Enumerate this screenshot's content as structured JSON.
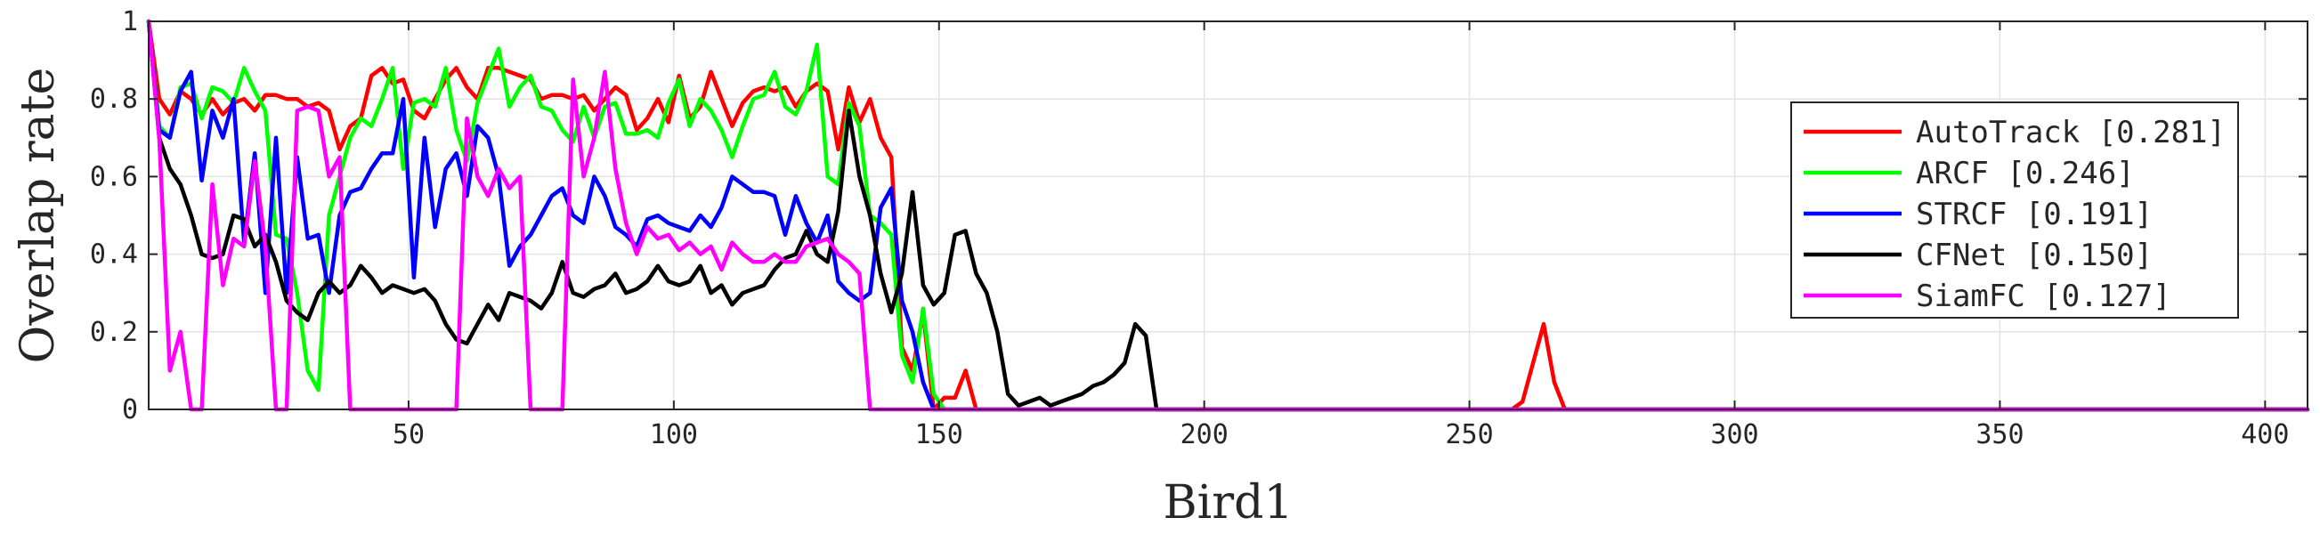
{
  "chart_data": {
    "type": "line",
    "title": "",
    "xlabel": "Bird1",
    "ylabel": "Overlap rate",
    "xlim": [
      1,
      408
    ],
    "ylim": [
      0,
      1
    ],
    "grid": true,
    "legend_position": "top-right",
    "xticks": [
      50,
      100,
      150,
      200,
      250,
      300,
      350,
      400
    ],
    "yticks": [
      0,
      0.2,
      0.4,
      0.6,
      0.8,
      1
    ],
    "ytick_labels": [
      "0",
      "0.2",
      "0.4",
      "0.6",
      "0.8",
      "1"
    ],
    "series": [
      {
        "name": "AutoTrack [0.281]",
        "color": "#ff0000",
        "x": [
          1,
          3,
          5,
          7,
          9,
          11,
          13,
          15,
          17,
          19,
          21,
          23,
          25,
          27,
          29,
          31,
          33,
          35,
          37,
          39,
          41,
          43,
          45,
          47,
          49,
          51,
          53,
          55,
          57,
          59,
          61,
          63,
          65,
          67,
          69,
          71,
          73,
          75,
          77,
          79,
          81,
          83,
          85,
          87,
          89,
          91,
          93,
          95,
          97,
          99,
          101,
          103,
          105,
          107,
          109,
          111,
          113,
          115,
          117,
          119,
          121,
          123,
          125,
          127,
          129,
          131,
          133,
          135,
          137,
          139,
          141,
          143,
          145,
          147,
          149,
          151,
          153,
          155,
          157,
          160,
          200,
          250,
          258,
          260,
          262,
          264,
          266,
          268,
          270,
          300,
          350,
          400,
          408
        ],
        "values": [
          1,
          0.8,
          0.76,
          0.82,
          0.8,
          0.76,
          0.8,
          0.76,
          0.79,
          0.8,
          0.77,
          0.81,
          0.81,
          0.8,
          0.8,
          0.78,
          0.79,
          0.77,
          0.67,
          0.73,
          0.75,
          0.86,
          0.88,
          0.84,
          0.85,
          0.77,
          0.75,
          0.8,
          0.85,
          0.88,
          0.83,
          0.8,
          0.88,
          0.88,
          0.87,
          0.86,
          0.85,
          0.8,
          0.81,
          0.81,
          0.8,
          0.81,
          0.77,
          0.8,
          0.83,
          0.81,
          0.72,
          0.75,
          0.8,
          0.74,
          0.86,
          0.75,
          0.78,
          0.87,
          0.8,
          0.73,
          0.79,
          0.82,
          0.83,
          0.82,
          0.83,
          0.78,
          0.82,
          0.84,
          0.82,
          0.67,
          0.83,
          0.74,
          0.8,
          0.7,
          0.65,
          0.16,
          0.1,
          0.25,
          0,
          0.03,
          0.03,
          0.1,
          0,
          0,
          0,
          0,
          0,
          0.02,
          0.12,
          0.22,
          0.07,
          0,
          0,
          0,
          0,
          0,
          0
        ]
      },
      {
        "name": "ARCF [0.246]",
        "color": "#00ff00",
        "x": [
          1,
          3,
          5,
          7,
          9,
          11,
          13,
          15,
          17,
          19,
          21,
          23,
          25,
          27,
          29,
          31,
          33,
          35,
          37,
          39,
          41,
          43,
          45,
          47,
          49,
          51,
          53,
          55,
          57,
          59,
          61,
          63,
          65,
          67,
          69,
          71,
          73,
          75,
          77,
          79,
          81,
          83,
          85,
          87,
          89,
          91,
          93,
          95,
          97,
          99,
          101,
          103,
          105,
          107,
          109,
          111,
          113,
          115,
          117,
          119,
          121,
          123,
          125,
          127,
          129,
          131,
          133,
          135,
          137,
          139,
          141,
          143,
          145,
          147,
          149,
          151,
          160,
          200,
          250,
          300,
          350,
          400,
          408
        ],
        "values": [
          1,
          0.73,
          0.7,
          0.83,
          0.84,
          0.75,
          0.83,
          0.82,
          0.79,
          0.88,
          0.82,
          0.77,
          0.45,
          0.44,
          0.3,
          0.1,
          0.05,
          0.5,
          0.6,
          0.7,
          0.75,
          0.73,
          0.8,
          0.88,
          0.62,
          0.79,
          0.8,
          0.78,
          0.88,
          0.72,
          0.64,
          0.79,
          0.86,
          0.93,
          0.78,
          0.83,
          0.86,
          0.78,
          0.77,
          0.72,
          0.69,
          0.78,
          0.7,
          0.78,
          0.79,
          0.71,
          0.71,
          0.72,
          0.7,
          0.79,
          0.85,
          0.73,
          0.8,
          0.77,
          0.72,
          0.65,
          0.73,
          0.8,
          0.81,
          0.87,
          0.78,
          0.76,
          0.82,
          0.94,
          0.6,
          0.58,
          0.79,
          0.73,
          0.5,
          0.48,
          0.45,
          0.14,
          0.07,
          0.26,
          0.04,
          0,
          0,
          0,
          0,
          0,
          0,
          0,
          0
        ]
      },
      {
        "name": "STRCF [0.191]",
        "color": "#0000ff",
        "x": [
          1,
          3,
          5,
          7,
          9,
          11,
          13,
          15,
          17,
          19,
          21,
          23,
          25,
          27,
          29,
          31,
          33,
          35,
          37,
          39,
          41,
          43,
          45,
          47,
          49,
          51,
          53,
          55,
          57,
          59,
          61,
          63,
          65,
          67,
          69,
          71,
          73,
          75,
          77,
          79,
          81,
          83,
          85,
          87,
          89,
          91,
          93,
          95,
          97,
          99,
          101,
          103,
          105,
          107,
          109,
          111,
          113,
          115,
          117,
          119,
          121,
          123,
          125,
          127,
          129,
          131,
          133,
          135,
          137,
          139,
          141,
          143,
          145,
          147,
          149,
          151,
          160,
          200,
          250,
          300,
          350,
          400,
          408
        ],
        "values": [
          1,
          0.72,
          0.7,
          0.82,
          0.87,
          0.59,
          0.77,
          0.7,
          0.8,
          0.43,
          0.66,
          0.3,
          0.7,
          0.3,
          0.65,
          0.44,
          0.45,
          0.3,
          0.5,
          0.56,
          0.57,
          0.62,
          0.66,
          0.66,
          0.8,
          0.34,
          0.7,
          0.47,
          0.62,
          0.66,
          0.55,
          0.73,
          0.7,
          0.6,
          0.37,
          0.42,
          0.45,
          0.5,
          0.55,
          0.57,
          0.5,
          0.48,
          0.6,
          0.55,
          0.47,
          0.45,
          0.42,
          0.49,
          0.5,
          0.48,
          0.47,
          0.46,
          0.5,
          0.47,
          0.52,
          0.6,
          0.58,
          0.56,
          0.56,
          0.55,
          0.45,
          0.55,
          0.48,
          0.43,
          0.5,
          0.33,
          0.3,
          0.28,
          0.3,
          0.52,
          0.57,
          0.28,
          0.2,
          0.07,
          0,
          0,
          0,
          0,
          0,
          0,
          0,
          0,
          0
        ]
      },
      {
        "name": "CFNet [0.150]",
        "color": "#000000",
        "x": [
          1,
          3,
          5,
          7,
          9,
          11,
          13,
          15,
          17,
          19,
          21,
          23,
          25,
          27,
          29,
          31,
          33,
          35,
          37,
          39,
          41,
          43,
          45,
          47,
          49,
          51,
          53,
          55,
          57,
          59,
          61,
          63,
          65,
          67,
          69,
          71,
          73,
          75,
          77,
          79,
          81,
          83,
          85,
          87,
          89,
          91,
          93,
          95,
          97,
          99,
          101,
          103,
          105,
          107,
          109,
          111,
          113,
          115,
          117,
          119,
          121,
          123,
          125,
          127,
          129,
          131,
          133,
          135,
          137,
          139,
          141,
          143,
          145,
          147,
          149,
          151,
          153,
          155,
          157,
          159,
          161,
          163,
          165,
          167,
          169,
          171,
          173,
          175,
          177,
          179,
          181,
          183,
          185,
          187,
          189,
          191,
          193,
          195,
          200,
          250,
          300,
          350,
          400,
          408
        ],
        "values": [
          1,
          0.7,
          0.62,
          0.58,
          0.5,
          0.4,
          0.39,
          0.4,
          0.5,
          0.49,
          0.42,
          0.45,
          0.38,
          0.28,
          0.25,
          0.23,
          0.3,
          0.33,
          0.3,
          0.32,
          0.37,
          0.34,
          0.3,
          0.32,
          0.31,
          0.3,
          0.31,
          0.28,
          0.22,
          0.18,
          0.17,
          0.22,
          0.27,
          0.23,
          0.3,
          0.29,
          0.28,
          0.26,
          0.3,
          0.38,
          0.3,
          0.29,
          0.31,
          0.32,
          0.35,
          0.3,
          0.31,
          0.33,
          0.37,
          0.33,
          0.32,
          0.33,
          0.37,
          0.3,
          0.32,
          0.27,
          0.3,
          0.31,
          0.32,
          0.36,
          0.39,
          0.4,
          0.46,
          0.4,
          0.38,
          0.51,
          0.77,
          0.6,
          0.5,
          0.35,
          0.25,
          0.35,
          0.56,
          0.32,
          0.27,
          0.3,
          0.45,
          0.46,
          0.35,
          0.3,
          0.2,
          0.04,
          0.01,
          0.02,
          0.03,
          0.01,
          0.02,
          0.03,
          0.04,
          0.06,
          0.07,
          0.09,
          0.12,
          0.22,
          0.19,
          0,
          0,
          0,
          0,
          0,
          0,
          0,
          0,
          0
        ]
      },
      {
        "name": "SiamFC [0.127]",
        "color": "#ff00ff",
        "x": [
          1,
          3,
          5,
          7,
          9,
          11,
          13,
          15,
          17,
          19,
          21,
          23,
          25,
          27,
          29,
          31,
          33,
          35,
          37,
          39,
          41,
          43,
          45,
          47,
          49,
          51,
          53,
          55,
          57,
          59,
          61,
          63,
          65,
          67,
          69,
          71,
          73,
          75,
          77,
          79,
          81,
          83,
          85,
          87,
          89,
          91,
          93,
          95,
          97,
          99,
          101,
          103,
          105,
          107,
          109,
          111,
          113,
          115,
          117,
          119,
          121,
          123,
          125,
          127,
          129,
          131,
          133,
          135,
          137,
          139,
          141,
          143,
          145,
          150,
          200,
          250,
          300,
          350,
          400,
          408
        ],
        "values": [
          1,
          0.7,
          0.1,
          0.2,
          0,
          0,
          0.58,
          0.32,
          0.44,
          0.42,
          0.64,
          0.42,
          0,
          0,
          0.77,
          0.78,
          0.77,
          0.6,
          0.65,
          0,
          0,
          0,
          0,
          0,
          0,
          0,
          0,
          0,
          0,
          0,
          0.75,
          0.6,
          0.55,
          0.62,
          0.57,
          0.6,
          0,
          0,
          0,
          0,
          0.85,
          0.6,
          0.7,
          0.87,
          0.62,
          0.48,
          0.4,
          0.47,
          0.44,
          0.45,
          0.41,
          0.43,
          0.4,
          0.42,
          0.36,
          0.43,
          0.4,
          0.38,
          0.38,
          0.4,
          0.38,
          0.38,
          0.42,
          0.43,
          0.44,
          0.4,
          0.38,
          0.35,
          0,
          0,
          0,
          0,
          0,
          0,
          0,
          0,
          0,
          0,
          0,
          0
        ]
      }
    ]
  }
}
